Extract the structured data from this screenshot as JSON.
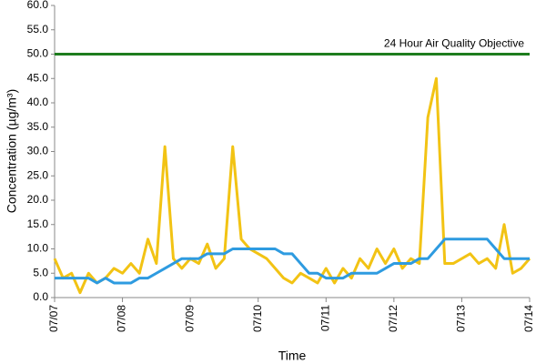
{
  "chart_data": {
    "type": "line",
    "y_label": "Concentration (µg/m³)",
    "x_label": "Time",
    "categories": [
      "07/07",
      null,
      null,
      null,
      null,
      null,
      null,
      null,
      "07/08",
      null,
      null,
      null,
      null,
      null,
      null,
      null,
      "07/09",
      null,
      null,
      null,
      null,
      null,
      null,
      null,
      "07/10",
      null,
      null,
      null,
      null,
      null,
      null,
      null,
      "07/11",
      null,
      null,
      null,
      null,
      null,
      null,
      null,
      "07/12",
      null,
      null,
      null,
      null,
      null,
      null,
      null,
      "07/13",
      null,
      null,
      null,
      null,
      null,
      null,
      null,
      "07/14"
    ],
    "series": [
      {
        "color": "#f2c314",
        "values": [
          8,
          4,
          5,
          1,
          5,
          3,
          4,
          6,
          5,
          7,
          5,
          12,
          7,
          31,
          8,
          6,
          8,
          7,
          11,
          6,
          8,
          31,
          12,
          10,
          9,
          8,
          6,
          4,
          3,
          5,
          4,
          3,
          6,
          3,
          6,
          4,
          8,
          6,
          10,
          7,
          10,
          6,
          8,
          7,
          37,
          45,
          7,
          7,
          8,
          9,
          7,
          8,
          6,
          15,
          5,
          6,
          8
        ]
      },
      {
        "color": "#2e9be0",
        "values": [
          4,
          4,
          4,
          4,
          4,
          3,
          4,
          3,
          3,
          3,
          4,
          4,
          5,
          6,
          7,
          8,
          8,
          8,
          9,
          9,
          9,
          10,
          10,
          10,
          10,
          10,
          10,
          9,
          9,
          7,
          5,
          5,
          4,
          4,
          4,
          5,
          5,
          5,
          5,
          6,
          7,
          7,
          7,
          8,
          8,
          10,
          12,
          12,
          12,
          12,
          12,
          12,
          10,
          8,
          8,
          8,
          8
        ]
      }
    ],
    "reference_line": {
      "value": 50,
      "label": "24 Hour Air Quality Objective",
      "color": "#1e7d1e"
    },
    "ylim": [
      0,
      60
    ],
    "yticks": [
      {
        "value": 0,
        "label": "0.0"
      },
      {
        "value": 5,
        "label": "5.0"
      },
      {
        "value": 10,
        "label": "10.0"
      },
      {
        "value": 15,
        "label": "15.0"
      },
      {
        "value": 20,
        "label": "20.0"
      },
      {
        "value": 25,
        "label": "25.0"
      },
      {
        "value": 30,
        "label": "30.0"
      },
      {
        "value": 35,
        "label": "35.0"
      },
      {
        "value": 40,
        "label": "40.0"
      },
      {
        "value": 45,
        "label": "45.0"
      },
      {
        "value": 50,
        "label": "50.0"
      },
      {
        "value": 55,
        "label": "55.0"
      },
      {
        "value": 60,
        "label": "60.0"
      }
    ]
  }
}
